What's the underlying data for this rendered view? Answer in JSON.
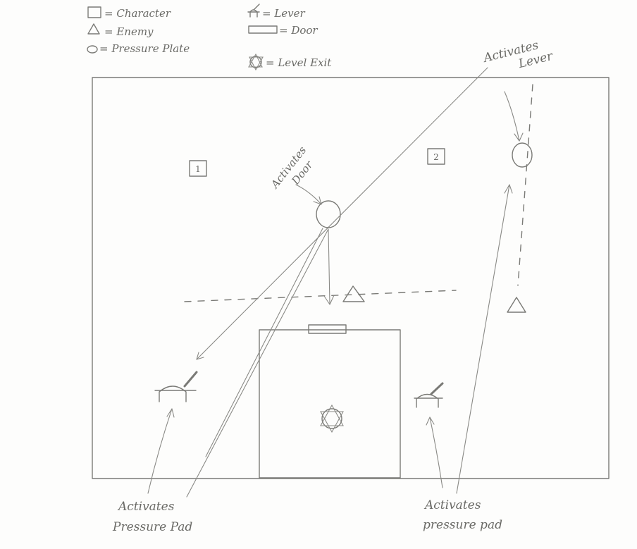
{
  "legend": {
    "character": "= Character",
    "enemy": "= Enemy",
    "pressure_plate": "= Pressure Plate",
    "lever": "= Lever",
    "door": "= Door",
    "level_exit": "= Level Exit"
  },
  "annotations": {
    "activates_door": [
      "Activates",
      "Door"
    ],
    "activates_lever": [
      "Activates",
      "Lever"
    ],
    "activates_pressure_pad_left": [
      "Activates",
      "Pressure Pad"
    ],
    "activates_pressure_pad_right": [
      "Activates",
      "pressure pad"
    ]
  },
  "characters": {
    "one": "1",
    "two": "2"
  },
  "colors": {
    "pencil": "#7a7a76",
    "paper": "#fdfdfc"
  }
}
